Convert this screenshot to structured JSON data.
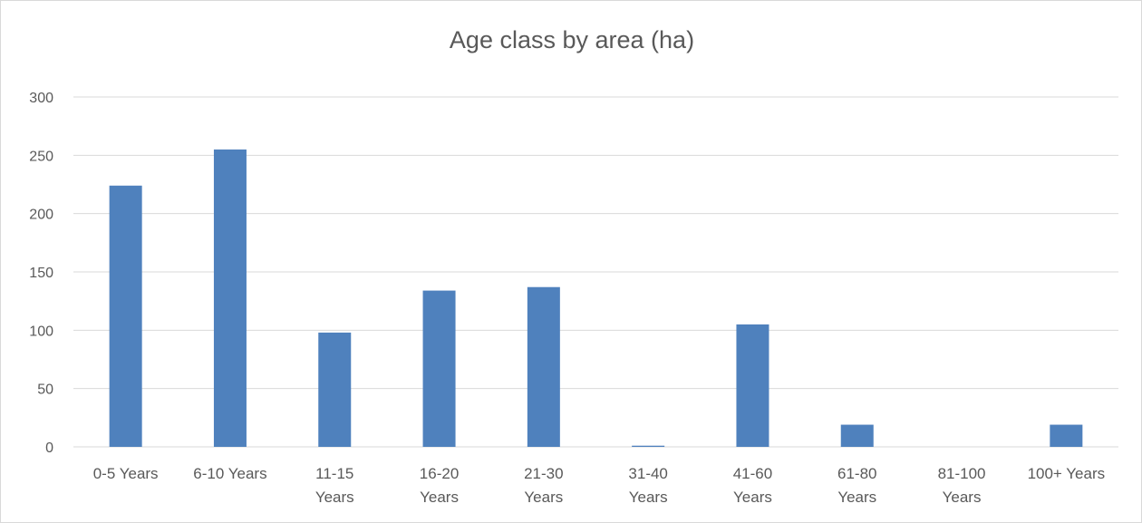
{
  "chart_data": {
    "type": "bar",
    "title": "Age class by area (ha)",
    "xlabel": "",
    "ylabel": "",
    "categories": [
      [
        "0-5 Years"
      ],
      [
        "6-10 Years"
      ],
      [
        "11-15",
        "Years"
      ],
      [
        "16-20",
        "Years"
      ],
      [
        "21-30",
        "Years"
      ],
      [
        "31-40",
        "Years"
      ],
      [
        "41-60",
        "Years"
      ],
      [
        "61-80",
        "Years"
      ],
      [
        "81-100",
        "Years"
      ],
      [
        "100+ Years"
      ]
    ],
    "values": [
      224,
      255,
      98,
      134,
      137,
      1,
      105,
      19,
      0,
      19
    ],
    "ylim": [
      0,
      300
    ],
    "yticks": [
      0,
      50,
      100,
      150,
      200,
      250,
      300
    ],
    "grid": true,
    "legend": "none",
    "colors": {
      "bar": "#4f81bd",
      "grid": "#d9d9d9",
      "axis_text": "#595959",
      "title": "#595959"
    }
  }
}
